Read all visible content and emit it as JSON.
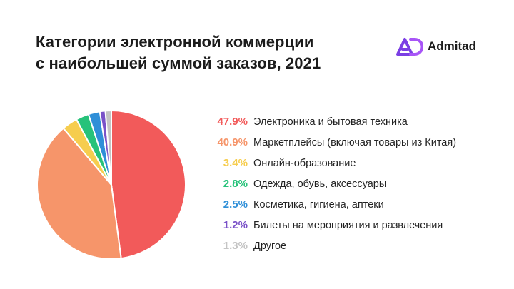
{
  "header": {
    "title_line1": "Категории электронной коммерции",
    "title_line2": "с наибольшей суммой заказов, 2021"
  },
  "brand": {
    "name": "Admitad",
    "icon": "admitad-logo-icon",
    "color": "#7b3fe4"
  },
  "chart_data": {
    "type": "pie",
    "title": "Категории электронной коммерции с наибольшей суммой заказов, 2021",
    "legend_position": "right",
    "slices": [
      {
        "label": "Электроника и бытовая техника",
        "value": 47.9,
        "value_label": "47.9%",
        "color": "#f25a5a"
      },
      {
        "label": "Маркетплейсы (включая товары из Китая)",
        "value": 40.9,
        "value_label": "40.9%",
        "color": "#f6956a"
      },
      {
        "label": "Онлайн-образование",
        "value": 3.4,
        "value_label": "3.4%",
        "color": "#f6cd4e"
      },
      {
        "label": "Одежда, обувь, аксессуары",
        "value": 2.8,
        "value_label": "2.8%",
        "color": "#27c27a"
      },
      {
        "label": "Косметика, гигиена, аптеки",
        "value": 2.5,
        "value_label": "2.5%",
        "color": "#2f8fd8"
      },
      {
        "label": "Билеты на мероприятия и развлечения",
        "value": 1.2,
        "value_label": "1.2%",
        "color": "#7a52c8"
      },
      {
        "label": "Другое",
        "value": 1.3,
        "value_label": "1.3%",
        "color": "#c4c4c4"
      }
    ]
  }
}
